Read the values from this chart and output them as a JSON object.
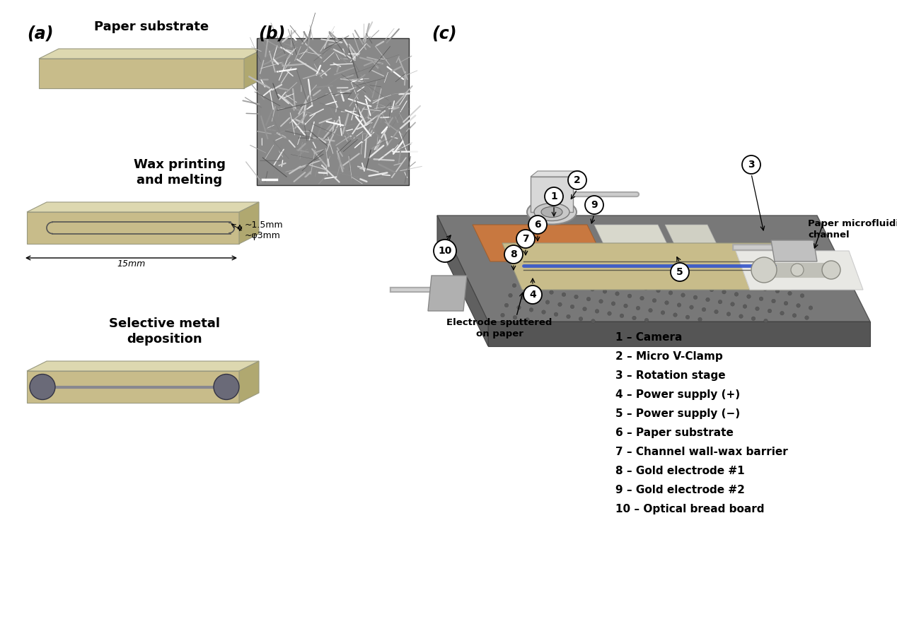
{
  "bg_color": "#ffffff",
  "paper_color": "#c8bc8a",
  "paper_top_color": "#ddd8b0",
  "paper_right_color": "#b0a870",
  "paper_edge": "#999980",
  "electrode_color": "#6a6a7a",
  "board_color": "#686868",
  "board_dark": "#555555",
  "board_edge": "#444444",
  "copper_color": "#c87840",
  "white_rail": "#e8e8e0",
  "blue_channel": "#4466cc",
  "legend_items": [
    "1 – Camera",
    "2 – Micro V-Clamp",
    "3 – Rotation stage",
    "4 – Power supply (+)",
    "5 – Power supply (−)",
    "6 – Paper substrate",
    "7 – Channel wall-wax barrier",
    "8 – Gold electrode #1",
    "9 – Gold electrode #2",
    "10 – Optical bread board"
  ]
}
